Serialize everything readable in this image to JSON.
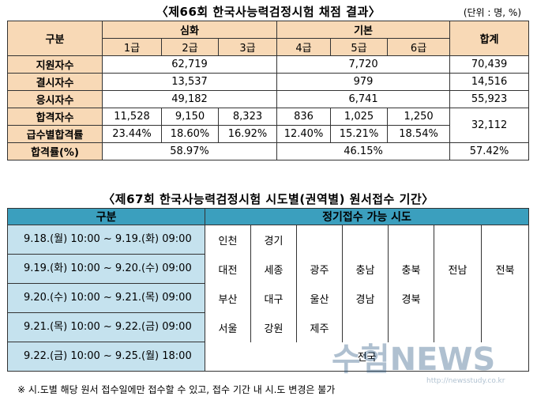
{
  "title1": "〈제66회 한국사능력검정시험 채점 결과〉",
  "unit": "(단위 : 명, %)",
  "t1": {
    "header": {
      "gubun": "구분",
      "advanced": "심화",
      "basic": "기본",
      "total": "합계",
      "grades": [
        "1급",
        "2급",
        "3급",
        "4급",
        "5급",
        "6급"
      ]
    },
    "rows": {
      "applicants": {
        "label": "지원자수",
        "adv": "62,719",
        "basic": "7,720",
        "total": "70,439"
      },
      "absent": {
        "label": "결시자수",
        "adv": "13,537",
        "basic": "979",
        "total": "14,516"
      },
      "takers": {
        "label": "응시자수",
        "adv": "49,182",
        "basic": "6,741",
        "total": "55,923"
      },
      "passers": {
        "label": "합격자수",
        "grades": [
          "11,528",
          "9,150",
          "8,323",
          "836",
          "1,025",
          "1,250"
        ],
        "total": "32,112"
      },
      "grade_rate": {
        "label": "급수별합격률",
        "grades": [
          "23.44%",
          "18.60%",
          "16.92%",
          "12.40%",
          "15.21%",
          "18.54%"
        ]
      },
      "pass_rate": {
        "label": "합격률(%)",
        "adv": "58.97%",
        "basic": "46.15%",
        "total": "57.42%"
      }
    }
  },
  "title2": "〈제67회 한국사능력검정시험 시도별(권역별) 원서접수 기간〉",
  "t2": {
    "header": {
      "gubun": "구분",
      "regions": "정기접수 가능 시도"
    },
    "rows": [
      {
        "period": "9.18.(월) 10:00 ~ 9.19.(화) 09:00",
        "regions": [
          "인천",
          "경기"
        ]
      },
      {
        "period": "9.19.(화) 10:00 ~ 9.20.(수) 09:00",
        "regions": [
          "대전",
          "세종",
          "광주",
          "충남",
          "충북",
          "전남",
          "전북"
        ]
      },
      {
        "period": "9.20.(수) 10:00 ~ 9.21.(목) 09:00",
        "regions": [
          "부산",
          "대구",
          "울산",
          "경남",
          "경북"
        ]
      },
      {
        "period": "9.21.(목) 10:00 ~ 9.22.(금) 09:00",
        "regions": [
          "서울",
          "강원",
          "제주"
        ]
      },
      {
        "period": "9.22.(금) 10:00 ~ 9.25.(월) 18:00",
        "regions": [
          "전국"
        ]
      }
    ]
  },
  "note": "※ 시.도별 해당 원서 접수일에만 접수할 수 있고, 접수 기간 내 시.도 변경은 불가",
  "watermark": {
    "text": "수험NEWS",
    "sub": "http://newsstudy.co.kr"
  }
}
